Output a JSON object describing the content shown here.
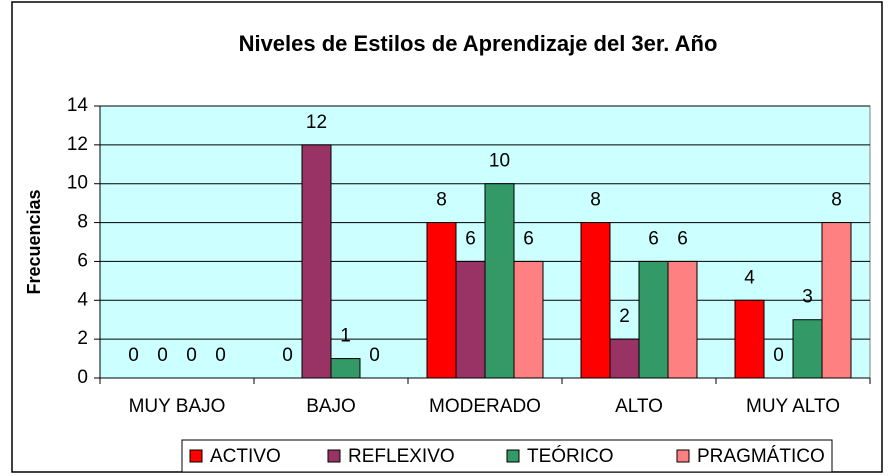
{
  "chart_data": {
    "type": "bar",
    "title": "Niveles de Estilos de Aprendizaje del 3er. Año",
    "y_label": "Frecuencias",
    "categories": [
      "MUY BAJO",
      "BAJO",
      "MODERADO",
      "ALTO",
      "MUY ALTO"
    ],
    "series": [
      {
        "name": "ACTIVO",
        "color": "#ff0000",
        "values": [
          0,
          0,
          8,
          8,
          4
        ]
      },
      {
        "name": "REFLEXIVO",
        "color": "#993366",
        "values": [
          0,
          12,
          6,
          2,
          0
        ]
      },
      {
        "name": "TEÓRICO",
        "color": "#339966",
        "values": [
          0,
          1,
          10,
          6,
          3
        ]
      },
      {
        "name": "PRAGMÁTICO",
        "color": "#ff8080",
        "values": [
          0,
          0,
          6,
          6,
          8
        ]
      }
    ],
    "ylim": [
      0,
      14
    ],
    "yticks": [
      0,
      2,
      4,
      6,
      8,
      10,
      12,
      14
    ],
    "grid": true,
    "legend": "bottom"
  }
}
